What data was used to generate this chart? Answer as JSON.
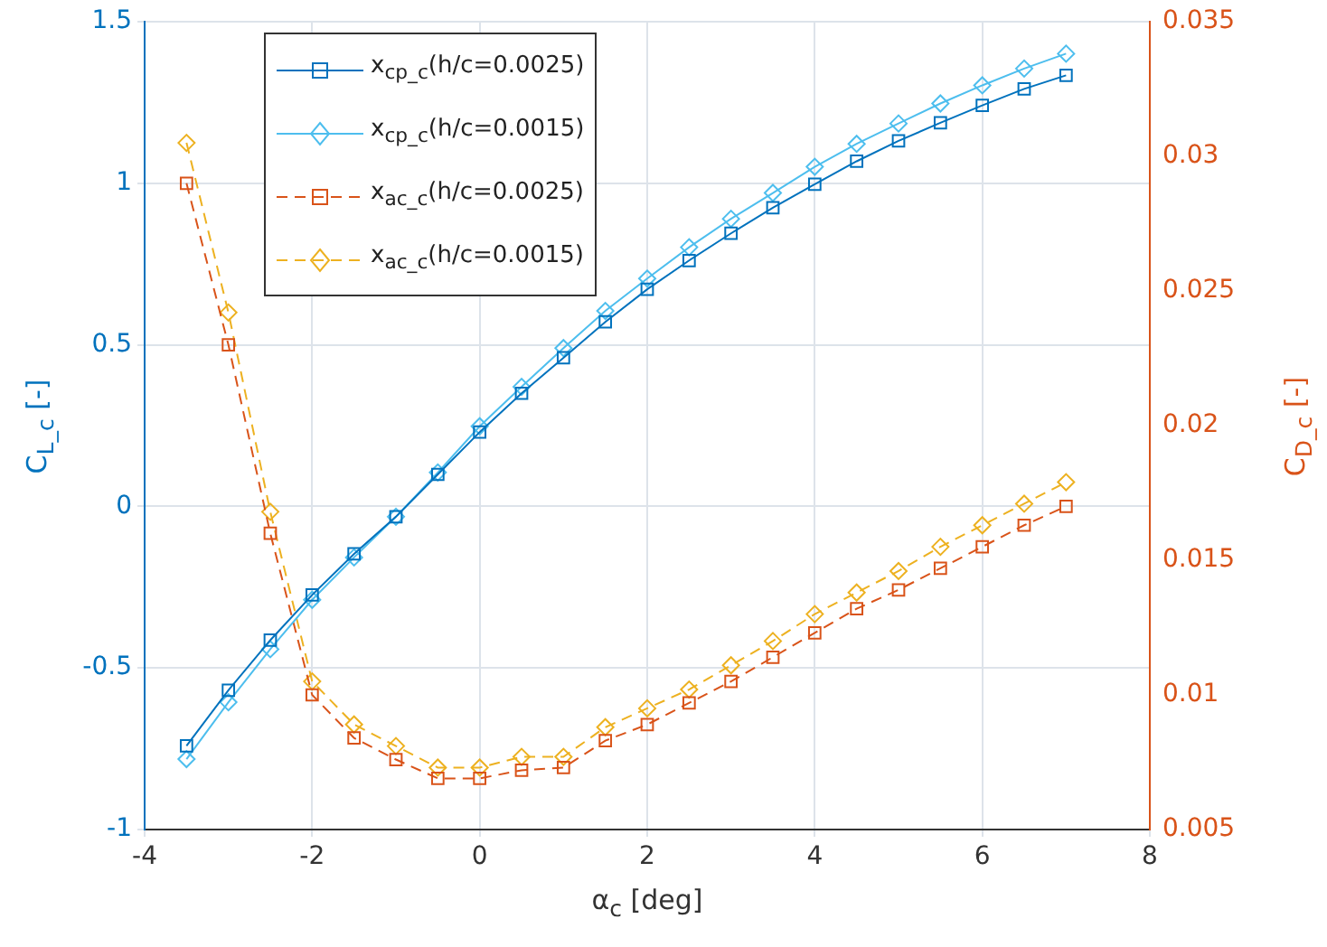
{
  "chart_data": {
    "type": "line",
    "xlabel": "α$_{c}$ [deg]",
    "ylabel": "C$_{L_c}$ [-]",
    "y2label": "C$_{D_c}$ [-]",
    "x": [
      -3.5,
      -3,
      -2.5,
      -2,
      -1.5,
      -1,
      -0.5,
      0,
      0.5,
      1,
      1.5,
      2,
      2.5,
      3,
      3.5,
      4,
      4.5,
      5,
      5.5,
      6,
      6.5,
      7
    ],
    "series": [
      {
        "name": "x$_{cp_c}$(h/c=0.0025)",
        "color": "#0072bd",
        "marker": "square",
        "line_style": "solid",
        "values": [
          -0.741,
          -0.569,
          -0.414,
          -0.274,
          -0.147,
          -0.032,
          0.099,
          0.23,
          0.35,
          0.46,
          0.571,
          0.672,
          0.761,
          0.845,
          0.924,
          0.997,
          1.068,
          1.131,
          1.187,
          1.241,
          1.292,
          1.334
        ]
      },
      {
        "name": "x$_{cp_c}$(h/c=0.0015)",
        "color": "#4dbeee",
        "marker": "diamond",
        "line_style": "solid",
        "values": [
          -0.782,
          -0.606,
          -0.442,
          -0.289,
          -0.158,
          -0.032,
          0.105,
          0.248,
          0.37,
          0.49,
          0.605,
          0.705,
          0.802,
          0.89,
          0.97,
          1.051,
          1.122,
          1.185,
          1.247,
          1.303,
          1.355,
          1.401
        ]
      },
      {
        "name": "x$_{ac_c}$(h/c=0.0025)",
        "color": "#d95319",
        "marker": "square",
        "line_style": "dashed",
        "axis": "y2",
        "values": [
          0.029,
          0.023,
          0.016,
          0.01,
          0.0084,
          0.0076,
          0.0069,
          0.0069,
          0.0072,
          0.0073,
          0.0083,
          0.0089,
          0.0097,
          0.0105,
          0.0114,
          0.0123,
          0.0132,
          0.0139,
          0.0147,
          0.0155,
          0.0163,
          0.017
        ]
      },
      {
        "name": "x$_{ac_c}$(h/c=0.0015)",
        "color": "#edb120",
        "marker": "diamond",
        "line_style": "dashed",
        "axis": "y2",
        "values": [
          0.0305,
          0.0242,
          0.0168,
          0.0105,
          0.0089,
          0.0081,
          0.0073,
          0.0073,
          0.0077,
          0.0077,
          0.0088,
          0.0095,
          0.0102,
          0.0111,
          0.012,
          0.013,
          0.0138,
          0.0146,
          0.0155,
          0.0163,
          0.0171,
          0.0179
        ]
      }
    ],
    "xlim": [
      -4,
      8
    ],
    "xticks": [
      -4,
      -2,
      0,
      2,
      4,
      6,
      8
    ],
    "ylim": [
      -1,
      1.5
    ],
    "yticks": [
      -1,
      -0.5,
      0,
      0.5,
      1,
      1.5
    ],
    "y2lim": [
      0.005,
      0.035
    ],
    "y2ticks": [
      0.005,
      0.01,
      0.015,
      0.02,
      0.025,
      0.03,
      0.035
    ],
    "grid": true,
    "legend": "top left"
  }
}
